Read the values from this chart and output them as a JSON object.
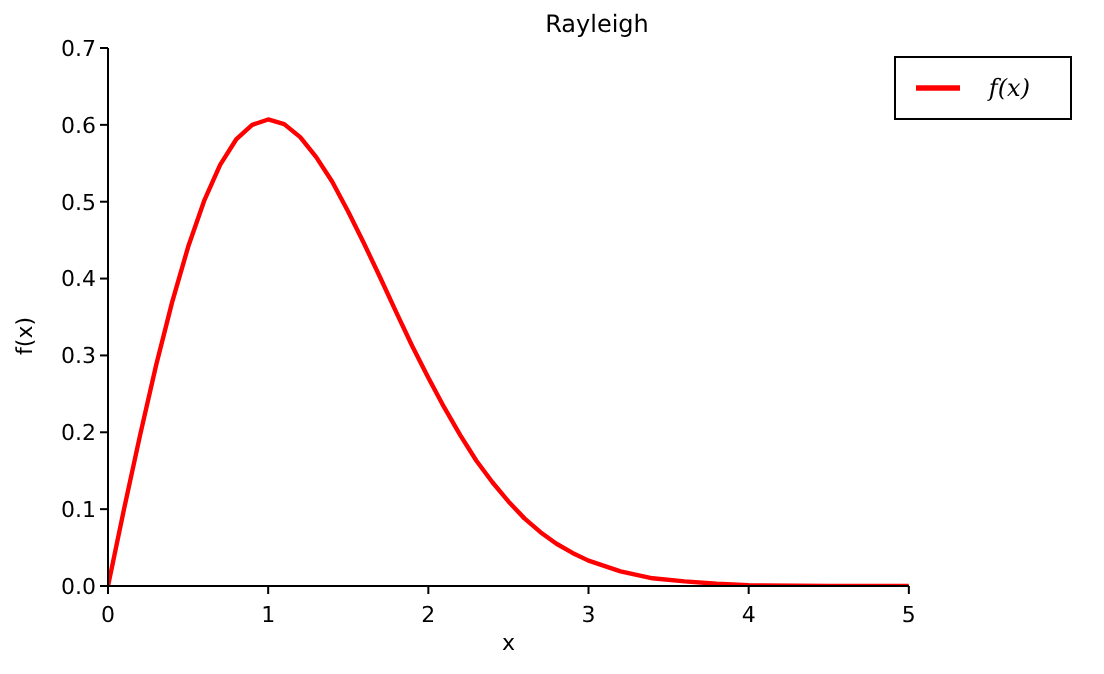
{
  "chart_data": {
    "type": "line",
    "title": "Rayleigh",
    "xlabel": "x",
    "ylabel": "f(x)",
    "x": [
      0,
      0.1,
      0.2,
      0.3,
      0.4,
      0.5,
      0.6,
      0.7,
      0.8,
      0.9,
      1.0,
      1.1,
      1.2,
      1.3,
      1.4,
      1.5,
      1.6,
      1.7,
      1.8,
      1.9,
      2.0,
      2.1,
      2.2,
      2.3,
      2.4,
      2.5,
      2.6,
      2.7,
      2.8,
      2.9,
      3.0,
      3.2,
      3.4,
      3.6,
      3.8,
      4.0,
      4.5,
      5.0
    ],
    "series": [
      {
        "name": "f(x)",
        "color": "#ff0000",
        "values": [
          0,
          0.1,
          0.196,
          0.287,
          0.369,
          0.441,
          0.501,
          0.548,
          0.581,
          0.6,
          0.607,
          0.601,
          0.584,
          0.558,
          0.526,
          0.487,
          0.445,
          0.401,
          0.356,
          0.312,
          0.271,
          0.232,
          0.196,
          0.163,
          0.135,
          0.11,
          0.088,
          0.07,
          0.055,
          0.043,
          0.033,
          0.019,
          0.01,
          0.006,
          0.003,
          0.001,
          0,
          0
        ]
      }
    ],
    "xlim": [
      0,
      5
    ],
    "xticks": [
      0,
      1,
      2,
      3,
      4,
      5
    ],
    "ylim": [
      0,
      0.7
    ],
    "yticks": [
      {
        "value": 0,
        "label": "0.0"
      },
      0.1,
      0.2,
      0.3,
      0.4,
      0.5,
      0.6,
      0.7
    ],
    "legend": "top right",
    "line_style": "solid",
    "marker": "none",
    "grid": false
  }
}
